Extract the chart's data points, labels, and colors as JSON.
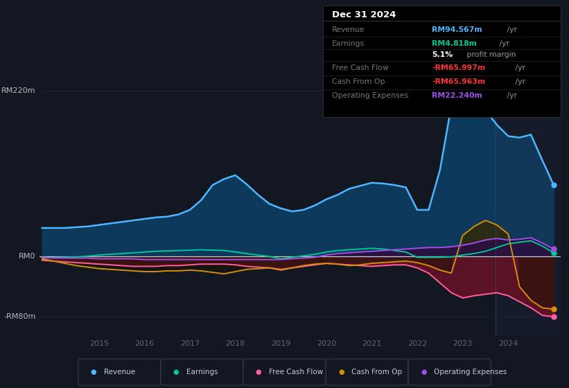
{
  "bg_color": "#131722",
  "grid_color": "#1e2535",
  "zero_line_color": "#d0d0d0",
  "ylim": [
    -105,
    248
  ],
  "ytick_vals": [
    -80,
    0,
    220
  ],
  "ytick_labels": [
    "-RM80m",
    "RM0",
    "RM220m"
  ],
  "year_ticks": [
    2015,
    2016,
    2017,
    2018,
    2019,
    2020,
    2021,
    2022,
    2023,
    2024
  ],
  "colors": {
    "revenue": "#4db8ff",
    "revenue_fill": "#0d3a5c",
    "earnings": "#00c896",
    "fcf": "#ff5fa0",
    "fcf_fill": "#5c1225",
    "cfop": "#d4900a",
    "cfop_fill_pos": "#2a2a18",
    "opex": "#a050e8",
    "opex_fill": "#2a1040"
  },
  "info_box": {
    "date": "Dec 31 2024",
    "rows": [
      {
        "label": "Revenue",
        "value": "RM94.567m",
        "unit": " /yr",
        "val_color": "#4db8ff",
        "bold_part": null
      },
      {
        "label": "Earnings",
        "value": "RM4.818m",
        "unit": " /yr",
        "val_color": "#00c896",
        "bold_part": null
      },
      {
        "label": "",
        "value": "5.1%",
        "unit": " profit margin",
        "val_color": "#ffffff",
        "bold_part": "5.1%"
      },
      {
        "label": "Free Cash Flow",
        "value": "-RM65.997m",
        "unit": " /yr",
        "val_color": "#ff3333",
        "bold_part": null
      },
      {
        "label": "Cash From Op",
        "value": "-RM65.963m",
        "unit": " /yr",
        "val_color": "#ff3333",
        "bold_part": null
      },
      {
        "label": "Operating Expenses",
        "value": "RM22.240m",
        "unit": " /yr",
        "val_color": "#a050e8",
        "bold_part": null
      }
    ]
  },
  "legend": [
    {
      "label": "Revenue",
      "color": "#4db8ff"
    },
    {
      "label": "Earnings",
      "color": "#00c896"
    },
    {
      "label": "Free Cash Flow",
      "color": "#ff5fa0"
    },
    {
      "label": "Cash From Op",
      "color": "#d4900a"
    },
    {
      "label": "Operating Expenses",
      "color": "#a050e8"
    }
  ],
  "x": [
    2013.75,
    2014.0,
    2014.25,
    2014.5,
    2014.75,
    2015.0,
    2015.25,
    2015.5,
    2015.75,
    2016.0,
    2016.25,
    2016.5,
    2016.75,
    2017.0,
    2017.25,
    2017.5,
    2017.75,
    2018.0,
    2018.25,
    2018.5,
    2018.75,
    2019.0,
    2019.25,
    2019.5,
    2019.75,
    2020.0,
    2020.25,
    2020.5,
    2020.75,
    2021.0,
    2021.25,
    2021.5,
    2021.75,
    2022.0,
    2022.25,
    2022.5,
    2022.75,
    2023.0,
    2023.25,
    2023.5,
    2023.75,
    2024.0,
    2024.25,
    2024.5,
    2024.75,
    2025.0
  ],
  "revenue": [
    38,
    38,
    38,
    39,
    40,
    42,
    44,
    46,
    48,
    50,
    52,
    53,
    56,
    62,
    75,
    95,
    103,
    108,
    96,
    82,
    70,
    64,
    60,
    62,
    68,
    76,
    82,
    90,
    94,
    98,
    97,
    95,
    92,
    62,
    62,
    115,
    200,
    228,
    215,
    195,
    175,
    160,
    158,
    162,
    128,
    95
  ],
  "earnings": [
    -2,
    -1.5,
    -1,
    -0.5,
    0.5,
    2,
    3,
    4,
    5,
    6,
    7,
    7.5,
    8,
    8.5,
    9,
    8.5,
    8,
    6,
    4,
    2,
    0,
    -3,
    -1,
    1,
    3,
    6,
    8,
    9,
    10,
    11,
    10,
    8,
    6,
    -1,
    -1,
    -1,
    -0.5,
    2,
    4,
    7,
    12,
    17,
    19,
    21,
    14,
    5
  ],
  "fcf": [
    -5,
    -6,
    -7,
    -8,
    -9,
    -10,
    -11,
    -12,
    -13,
    -13,
    -13,
    -12,
    -12,
    -11,
    -10,
    -10,
    -10,
    -11,
    -13,
    -14,
    -15,
    -17,
    -15,
    -13,
    -11,
    -9,
    -10,
    -11,
    -12,
    -13,
    -12,
    -11,
    -11,
    -15,
    -22,
    -35,
    -48,
    -55,
    -52,
    -50,
    -48,
    -52,
    -60,
    -68,
    -78,
    -80
  ],
  "cfop": [
    -3,
    -6,
    -9,
    -12,
    -14,
    -16,
    -17,
    -18,
    -19,
    -20,
    -20,
    -19,
    -19,
    -18,
    -19,
    -21,
    -23,
    -20,
    -17,
    -16,
    -15,
    -18,
    -15,
    -12,
    -10,
    -9,
    -10,
    -12,
    -11,
    -9,
    -8,
    -7,
    -6,
    -8,
    -12,
    -18,
    -22,
    28,
    40,
    48,
    42,
    30,
    -40,
    -58,
    -68,
    -70
  ],
  "opex": [
    -1,
    -2,
    -2,
    -2,
    -2,
    -3,
    -3,
    -3,
    -3,
    -4,
    -4,
    -4,
    -4,
    -4,
    -4,
    -4,
    -4,
    -4,
    -4,
    -4,
    -4,
    -4,
    -3,
    -2,
    -1,
    2,
    4,
    5,
    6,
    7,
    8,
    9,
    10,
    11,
    12,
    12,
    13,
    15,
    18,
    22,
    24,
    22,
    23,
    25,
    18,
    10
  ]
}
